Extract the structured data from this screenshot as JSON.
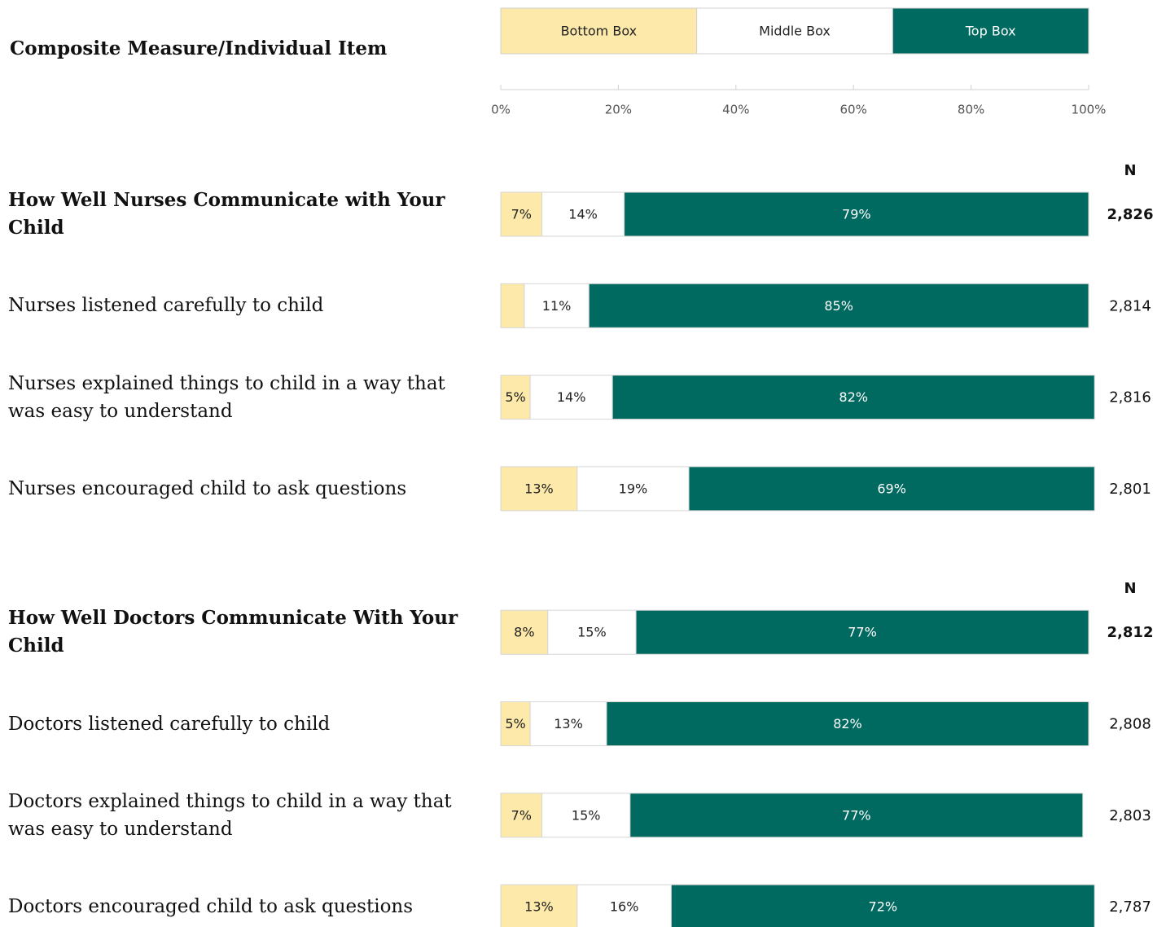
{
  "chart_data": {
    "type": "stacked-bar-horizontal",
    "title": "Composite Measure/Individual Item",
    "categories": [
      "How Well Nurses Communicate with Your Child",
      "Nurses listened carefully to child",
      "Nurses explained things to child in a way that was easy to understand",
      "Nurses encouraged child to ask questions",
      "How Well Doctors Communicate With Your Child",
      "Doctors listened carefully to child",
      "Doctors explained things to child in a way that was easy to understand",
      "Doctors encouraged child to ask questions"
    ],
    "composite": [
      true,
      false,
      false,
      false,
      true,
      false,
      false,
      false
    ],
    "series": [
      {
        "name": "Bottom Box",
        "color": "#fde9a9",
        "values": [
          7,
          4,
          5,
          13,
          8,
          5,
          7,
          13
        ],
        "value_labels": [
          "7%",
          null,
          "5%",
          "13%",
          "8%",
          "5%",
          "7%",
          "13%"
        ]
      },
      {
        "name": "Middle Box",
        "color": "#ffffff",
        "values": [
          14,
          11,
          14,
          19,
          15,
          13,
          15,
          16
        ],
        "value_labels": [
          "14%",
          "11%",
          "14%",
          "19%",
          "15%",
          "13%",
          "15%",
          "16%"
        ]
      },
      {
        "name": "Top Box",
        "color": "#006a60",
        "values": [
          79,
          85,
          82,
          69,
          77,
          82,
          77,
          72
        ],
        "value_labels": [
          "79%",
          "85%",
          "82%",
          "69%",
          "77%",
          "82%",
          "77%",
          "72%"
        ]
      }
    ],
    "n": {
      "name": "N",
      "values": [
        2826,
        2814,
        2816,
        2801,
        2812,
        2808,
        2803,
        2787
      ],
      "value_labels": [
        "2,826",
        "2,814",
        "2,816",
        "2,801",
        "2,812",
        "2,808",
        "2,803",
        "2,787"
      ]
    },
    "xlim": [
      0,
      100
    ],
    "xticks": [
      {
        "value": 0,
        "label": "0%"
      },
      {
        "value": 20,
        "label": "20%"
      },
      {
        "value": 40,
        "label": "40%"
      },
      {
        "value": 60,
        "label": "60%"
      },
      {
        "value": 80,
        "label": "80%"
      },
      {
        "value": 100,
        "label": "100%"
      }
    ],
    "legend": "top"
  }
}
